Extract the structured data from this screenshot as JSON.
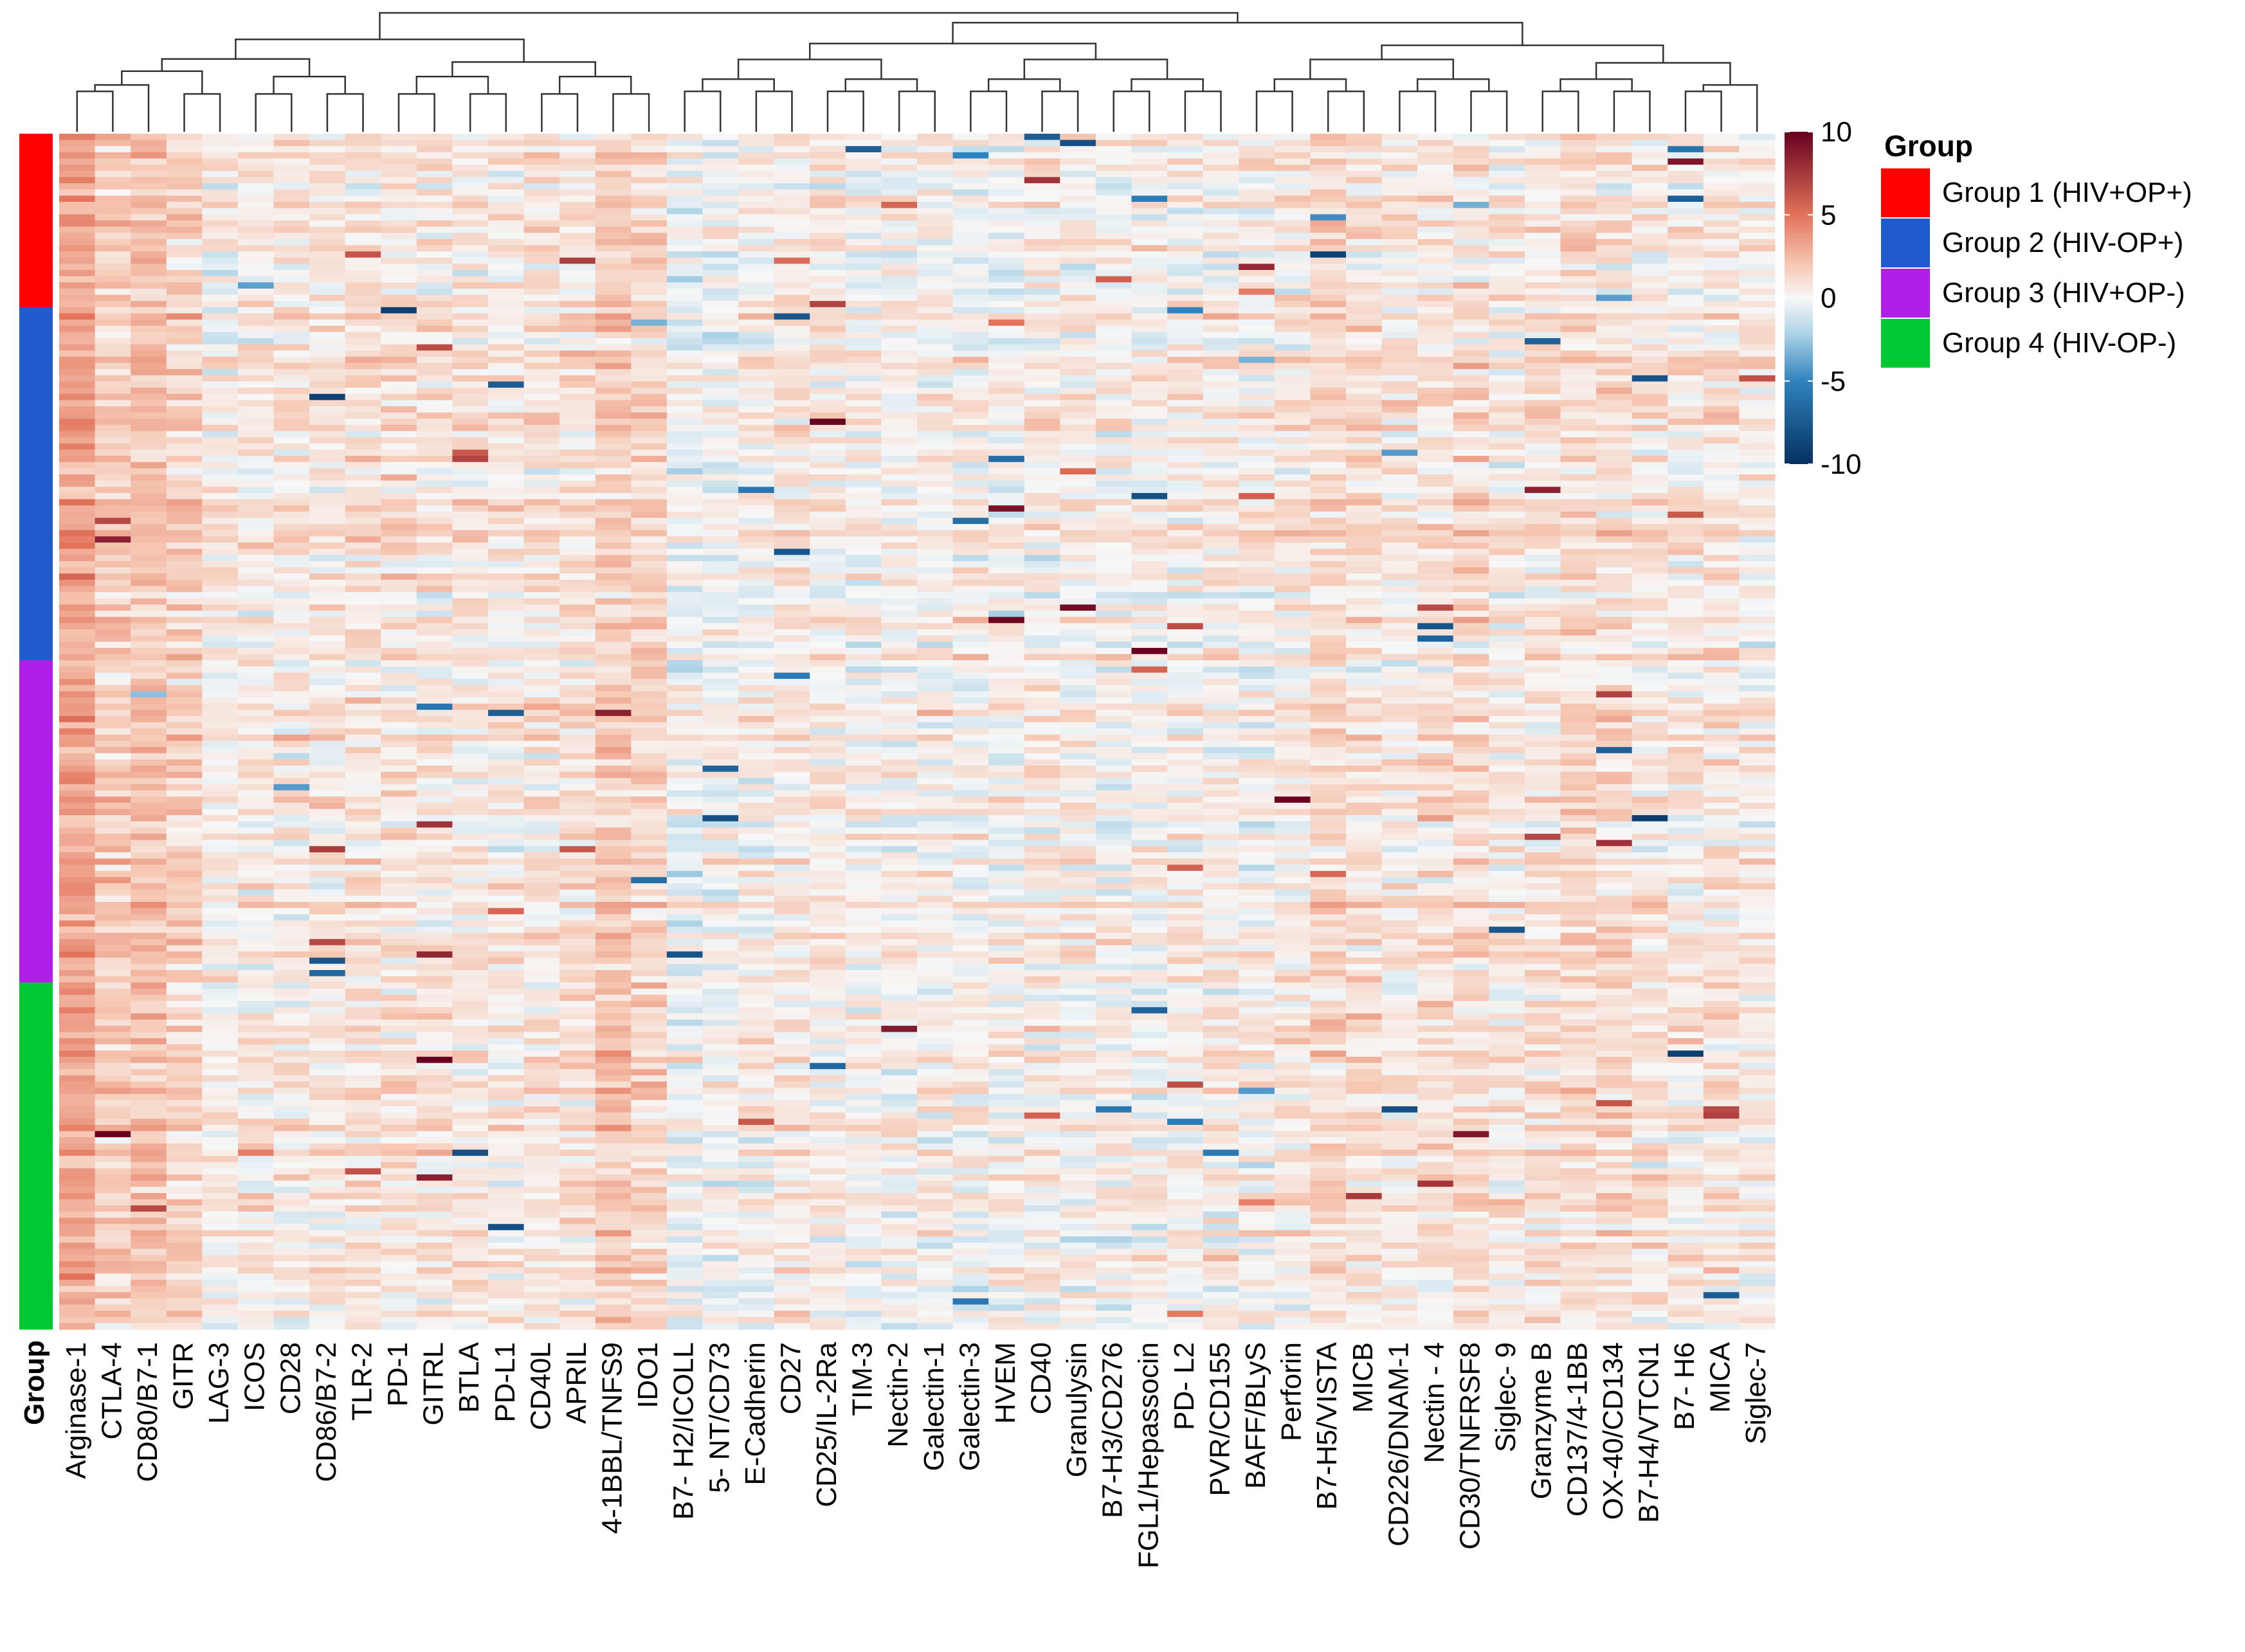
{
  "chart_data": {
    "type": "heatmap",
    "title": "",
    "row_annotation_label": "Group",
    "columns": [
      "Arginase-1",
      "CTLA-4",
      "CD80/B7-1",
      "GITR",
      "LAG-3",
      "ICOS",
      "CD28",
      "CD86/B7-2",
      "TLR-2",
      "PD-1",
      "GITRL",
      "BTLA",
      "PD-L1",
      "CD40L",
      "APRIL",
      "4-1BBL/TNFS9",
      "IDO1",
      "B7- H2/ICOLL",
      "5- NT/CD73",
      "E-Cadherin",
      "CD27",
      "CD25/IL-2Ra",
      "TIM-3",
      "Nectin-2",
      "Galectin-1",
      "Galectin-3",
      "HVEM",
      "CD40",
      "Granulysin",
      "B7-H3/CD276",
      "FGL1/Hepassocin",
      "PD- L2",
      "PVR/CD155",
      "BAFF/BLyS",
      "Perforin",
      "B7-H5/VISTA",
      "MICB",
      "CD226/DNAM-1",
      "Nectin - 4",
      "CD30/TNFRSF8",
      "Siglec- 9",
      "Granzyme B",
      "CD137/4-1BB",
      "OX-40/CD134",
      "B7-H4/VTCN1",
      "B7- H6",
      "MICA",
      "Siglec-7"
    ],
    "groups": [
      {
        "name": "Group 1 (HIV+OP+)",
        "color": "#ff0000",
        "n_samples": 28
      },
      {
        "name": "Group 2 (HIV-OP+)",
        "color": "#1f5bcc",
        "n_samples": 57
      },
      {
        "name": "Group 3 (HIV+OP-)",
        "color": "#b01ee8",
        "n_samples": 52
      },
      {
        "name": "Group 4 (HIV-OP-)",
        "color": "#00c832",
        "n_samples": 56
      }
    ],
    "color_scale": {
      "min": -10,
      "max": 10,
      "ticks": [
        10,
        5,
        0,
        -5,
        -10
      ],
      "stops": [
        {
          "value": -10,
          "color": "#053061"
        },
        {
          "value": -5,
          "color": "#2f83be"
        },
        {
          "value": -2,
          "color": "#b4d6e8"
        },
        {
          "value": 0,
          "color": "#f7f7f7"
        },
        {
          "value": 2,
          "color": "#f6c8b4"
        },
        {
          "value": 5,
          "color": "#e3725a"
        },
        {
          "value": 10,
          "color": "#67001f"
        }
      ]
    },
    "column_means": [
      3.2,
      1.8,
      2.2,
      1.6,
      0.4,
      0.5,
      0.6,
      0.7,
      0.9,
      0.8,
      0.7,
      0.6,
      0.7,
      0.8,
      1.0,
      1.9,
      1.4,
      -0.2,
      -0.1,
      0.3,
      0.6,
      0.6,
      0.2,
      0.3,
      0.3,
      0.2,
      0.2,
      0.3,
      0.3,
      0.3,
      0.2,
      0.3,
      0.4,
      0.4,
      0.5,
      1.3,
      1.0,
      0.6,
      0.8,
      1.2,
      0.6,
      0.9,
      1.2,
      1.0,
      0.8,
      0.6,
      0.7,
      0.5
    ],
    "legend": {
      "title": "Group",
      "position": "right"
    }
  }
}
